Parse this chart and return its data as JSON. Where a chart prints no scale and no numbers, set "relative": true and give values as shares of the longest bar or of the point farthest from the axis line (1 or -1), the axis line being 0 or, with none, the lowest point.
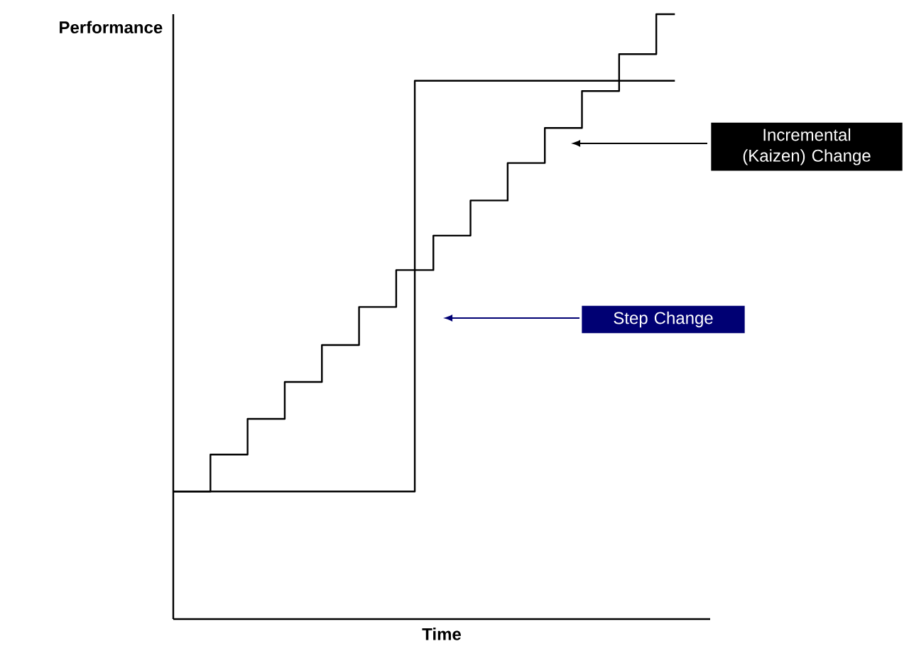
{
  "chart_data": {
    "type": "step",
    "relative": true,
    "xlabel": "Time",
    "ylabel": "Performance",
    "categories": [
      null,
      null,
      null,
      null,
      null,
      null,
      null,
      null,
      null,
      null,
      null,
      null,
      null,
      null,
      null,
      null,
      null,
      null,
      null,
      null,
      null,
      null,
      null,
      null,
      null,
      null,
      null,
      null
    ],
    "series": [
      {
        "color": "#000000",
        "values": [
          0.211,
          0.211,
          0.211,
          0.211,
          0.211,
          0.211,
          0.211,
          0.211,
          0.211,
          0.211,
          0.211,
          0.211,
          0.211,
          0.89,
          0.89,
          0.89,
          0.89,
          0.89,
          0.89,
          0.89,
          0.89,
          0.89,
          0.89,
          0.89,
          0.89,
          0.89,
          0.89,
          0.89
        ]
      },
      {
        "color": "#000000",
        "values": [
          0.211,
          0.211,
          0.272,
          0.272,
          0.331,
          0.331,
          0.392,
          0.392,
          0.453,
          0.453,
          0.516,
          0.516,
          0.577,
          0.577,
          0.634,
          0.634,
          0.692,
          0.692,
          0.754,
          0.754,
          0.812,
          0.812,
          0.873,
          0.873,
          0.934,
          0.934,
          1,
          1
        ]
      }
    ],
    "annotations": [
      "Incremental (Kaizen) Change",
      "Step Change"
    ]
  }
}
